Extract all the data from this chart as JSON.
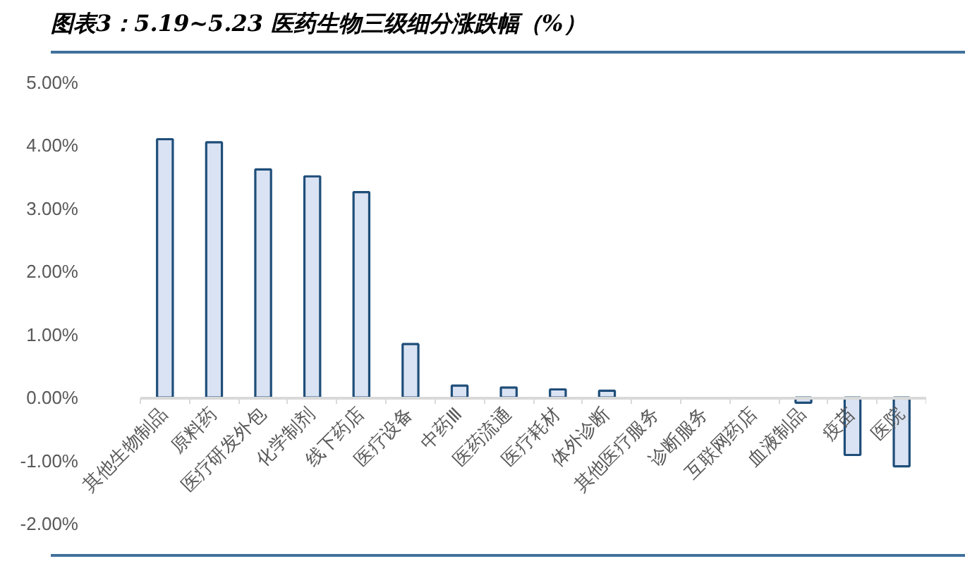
{
  "chart_data": {
    "type": "bar",
    "title": "图表3：5.19~5.23 医药生物三级细分涨跌幅（%）",
    "categories": [
      "其他生物制品",
      "原料药",
      "医疗研发外包",
      "化学制剂",
      "线下药店",
      "医疗设备",
      "中药Ⅲ",
      "医药流通",
      "医疗耗材",
      "体外诊断",
      "其他医疗服务",
      "诊断服务",
      "互联网药店",
      "血液制品",
      "疫苗",
      "医院"
    ],
    "values": [
      4.1,
      4.05,
      3.62,
      3.51,
      3.26,
      0.85,
      0.19,
      0.16,
      0.13,
      0.11,
      null,
      null,
      null,
      -0.08,
      -0.91,
      -1.09
    ],
    "color": "#dae3f3",
    "ylim": [
      -2,
      5
    ],
    "yticks": [
      {
        "value": -2,
        "label": "-2.00%"
      },
      {
        "value": -1,
        "label": "-1.00%"
      },
      {
        "value": 0,
        "label": "0.00%"
      },
      {
        "value": 1,
        "label": "1.00%"
      },
      {
        "value": 2,
        "label": "2.00%"
      },
      {
        "value": 3,
        "label": "3.00%"
      },
      {
        "value": 4,
        "label": "4.00%"
      },
      {
        "value": 5,
        "label": "5.00%"
      }
    ]
  }
}
